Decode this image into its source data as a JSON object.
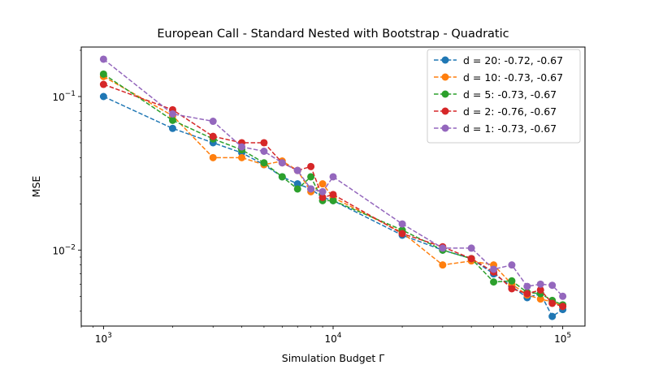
{
  "chart_data": {
    "type": "line",
    "title": "European Call - Standard Nested with Bootstrap - Quadratic",
    "xlabel": "Simulation Budget Γ",
    "ylabel": "MSE",
    "xscale": "log",
    "yscale": "log",
    "xlim": [
      800,
      125000
    ],
    "ylim": [
      0.0032,
      0.21
    ],
    "x_ticks": [
      {
        "value": 1000,
        "base": "10",
        "exp": "3"
      },
      {
        "value": 10000,
        "base": "10",
        "exp": "4"
      },
      {
        "value": 100000,
        "base": "10",
        "exp": "5"
      }
    ],
    "y_ticks": [
      {
        "value": 0.01,
        "base": "10",
        "exp": "−2"
      },
      {
        "value": 0.1,
        "base": "10",
        "exp": "−1"
      }
    ],
    "legend_position": "top-right",
    "grid": false,
    "x": [
      1000,
      2000,
      3000,
      4000,
      5000,
      6000,
      7000,
      8000,
      9000,
      10000,
      20000,
      30000,
      40000,
      50000,
      60000,
      70000,
      80000,
      90000,
      100000
    ],
    "series": [
      {
        "name": "d = 20: -0.72, -0.67",
        "color": "#1f77b4",
        "values": [
          0.1,
          0.062,
          0.05,
          0.043,
          0.036,
          0.03,
          0.027,
          0.025,
          0.022,
          0.021,
          0.0125,
          0.01,
          0.0088,
          0.007,
          0.0058,
          0.0049,
          0.0052,
          0.0037,
          0.0041
        ]
      },
      {
        "name": "d = 10: -0.73, -0.67",
        "color": "#ff7f0e",
        "values": [
          0.135,
          0.075,
          0.04,
          0.04,
          0.036,
          0.038,
          0.033,
          0.024,
          0.027,
          0.022,
          0.013,
          0.008,
          0.0085,
          0.008,
          0.006,
          0.0051,
          0.0048,
          0.0046,
          0.0043
        ]
      },
      {
        "name": "d = 5: -0.73, -0.67",
        "color": "#2ca02c",
        "values": [
          0.14,
          0.07,
          0.053,
          0.045,
          0.037,
          0.03,
          0.025,
          0.03,
          0.021,
          0.021,
          0.0135,
          0.01,
          0.0088,
          0.0062,
          0.0063,
          0.0053,
          0.0052,
          0.0047,
          0.0044
        ]
      },
      {
        "name": "d = 2: -0.76, -0.67",
        "color": "#d62728",
        "values": [
          0.12,
          0.082,
          0.055,
          0.05,
          0.05,
          0.037,
          0.033,
          0.035,
          0.022,
          0.023,
          0.0128,
          0.0105,
          0.0088,
          0.0072,
          0.0056,
          0.0052,
          0.0055,
          0.0045,
          0.0043
        ]
      },
      {
        "name": "d = 1: -0.73, -0.67",
        "color": "#9467bd",
        "values": [
          0.175,
          0.077,
          0.069,
          0.047,
          0.044,
          0.037,
          0.033,
          0.025,
          0.024,
          0.03,
          0.0148,
          0.0103,
          0.0103,
          0.0075,
          0.008,
          0.0058,
          0.006,
          0.0059,
          0.005
        ]
      }
    ]
  }
}
